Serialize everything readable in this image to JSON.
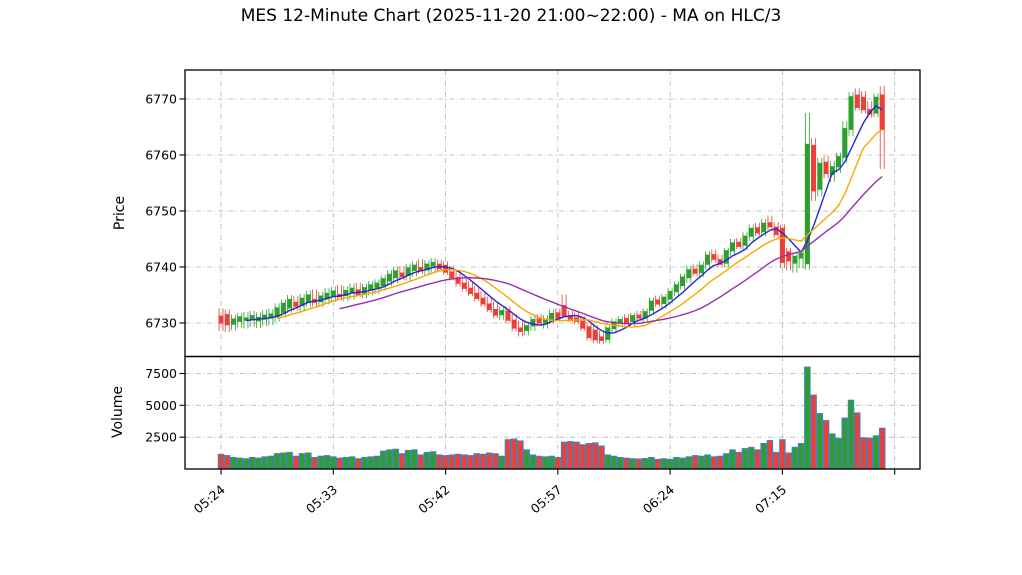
{
  "title": "MES 12-Minute Chart (2025-11-20 21:00~22:00) - MA on HLC/3",
  "price_axis": {
    "label": "Price",
    "ticks": [
      6730,
      6740,
      6750,
      6760,
      6770
    ]
  },
  "volume_axis": {
    "label": "Volume",
    "ticks": [
      2500,
      5000,
      7500
    ]
  },
  "x_axis": {
    "tick_labels": [
      "05:24",
      "05:33",
      "05:42",
      "05:57",
      "06:24",
      "07:15",
      ""
    ],
    "tick_bar_indices": [
      0,
      18,
      36,
      54,
      72,
      90,
      108
    ]
  },
  "chart_data": {
    "type": "candlestick+volume",
    "title": "MES 12-Minute Chart (2025-11-20 21:00~22:00) - MA on HLC/3",
    "ma_source": "HLC/3",
    "ma_periods": [
      5,
      10,
      20
    ],
    "price_ylim": [
      6724.2,
      6775.3
    ],
    "volume_ylim": [
      0,
      8900
    ],
    "grid": "dash-dot",
    "colors": {
      "up": "#2e9e2e",
      "down": "#ec3f3a",
      "ma_fast": "#2727cf",
      "ma_mid": "#ffa500",
      "ma_slow": "#9431a8",
      "volume_edge": "#4682b4",
      "grid": "#b3b3b3",
      "axis": "#000000"
    },
    "candles_format": [
      "open",
      "high",
      "low",
      "close",
      "volume"
    ],
    "candles": [
      [
        6731.3,
        6732.6,
        6728.6,
        6729.9,
        1150
      ],
      [
        6731.6,
        6732.4,
        6728.4,
        6729.6,
        1050
      ],
      [
        6729.7,
        6731.5,
        6728.7,
        6730.8,
        900
      ],
      [
        6730.2,
        6731.8,
        6729.2,
        6731.2,
        850
      ],
      [
        6730.4,
        6732.0,
        6729.0,
        6731.0,
        800
      ],
      [
        6730.5,
        6732.2,
        6729.3,
        6731.4,
        900
      ],
      [
        6730.3,
        6731.9,
        6729.1,
        6731.1,
        850
      ],
      [
        6730.6,
        6732.3,
        6729.4,
        6731.5,
        950
      ],
      [
        6730.8,
        6732.5,
        6729.6,
        6731.7,
        1000
      ],
      [
        6731.0,
        6733.5,
        6730.2,
        6732.8,
        1200
      ],
      [
        6731.8,
        6734.2,
        6731.0,
        6733.6,
        1250
      ],
      [
        6732.6,
        6735.0,
        6731.8,
        6734.3,
        1300
      ],
      [
        6733.8,
        6734.8,
        6732.2,
        6732.9,
        1000
      ],
      [
        6733.0,
        6735.2,
        6732.0,
        6734.5,
        1200
      ],
      [
        6733.6,
        6735.8,
        6732.8,
        6735.1,
        1250
      ],
      [
        6734.3,
        6736.0,
        6733.0,
        6733.6,
        900
      ],
      [
        6733.7,
        6735.6,
        6732.8,
        6734.9,
        1000
      ],
      [
        6734.2,
        6736.2,
        6733.3,
        6735.4,
        1050
      ],
      [
        6734.8,
        6736.5,
        6733.8,
        6735.8,
        950
      ],
      [
        6735.2,
        6736.8,
        6734.0,
        6734.6,
        850
      ],
      [
        6734.8,
        6736.6,
        6733.9,
        6735.9,
        900
      ],
      [
        6735.3,
        6737.0,
        6734.2,
        6736.3,
        950
      ],
      [
        6736.0,
        6737.2,
        6734.6,
        6735.0,
        800
      ],
      [
        6735.2,
        6737.0,
        6734.4,
        6736.4,
        900
      ],
      [
        6735.8,
        6737.5,
        6734.9,
        6736.9,
        950
      ],
      [
        6736.2,
        6737.8,
        6735.2,
        6737.2,
        1000
      ],
      [
        6736.6,
        6738.6,
        6735.8,
        6738.0,
        1400
      ],
      [
        6737.4,
        6739.4,
        6736.6,
        6738.8,
        1500
      ],
      [
        6738.0,
        6740.0,
        6737.1,
        6739.4,
        1550
      ],
      [
        6739.0,
        6740.2,
        6737.6,
        6738.2,
        1200
      ],
      [
        6738.4,
        6740.6,
        6737.6,
        6739.9,
        1450
      ],
      [
        6739.3,
        6741.0,
        6738.3,
        6740.4,
        1500
      ],
      [
        6740.0,
        6741.4,
        6738.8,
        6739.2,
        1100
      ],
      [
        6739.4,
        6741.2,
        6738.5,
        6740.6,
        1300
      ],
      [
        6740.1,
        6741.6,
        6739.0,
        6740.9,
        1350
      ],
      [
        6740.6,
        6741.3,
        6739.2,
        6739.6,
        1100
      ],
      [
        6740.4,
        6741.0,
        6738.6,
        6739.0,
        1050
      ],
      [
        6739.2,
        6740.2,
        6737.6,
        6738.0,
        1100
      ],
      [
        6738.2,
        6739.2,
        6736.5,
        6737.0,
        1150
      ],
      [
        6737.2,
        6738.4,
        6735.6,
        6736.1,
        1100
      ],
      [
        6736.3,
        6737.5,
        6734.8,
        6735.2,
        1050
      ],
      [
        6735.4,
        6736.6,
        6733.9,
        6734.3,
        1200
      ],
      [
        6734.5,
        6735.7,
        6732.9,
        6733.3,
        1150
      ],
      [
        6733.5,
        6734.7,
        6731.9,
        6732.3,
        1250
      ],
      [
        6732.5,
        6733.8,
        6730.9,
        6731.3,
        1200
      ],
      [
        6731.4,
        6732.9,
        6730.5,
        6732.3,
        1000
      ],
      [
        6732.2,
        6733.0,
        6730.0,
        6730.4,
        2300
      ],
      [
        6730.6,
        6731.6,
        6728.5,
        6729.0,
        2350
      ],
      [
        6729.2,
        6730.4,
        6727.6,
        6728.4,
        2200
      ],
      [
        6728.6,
        6730.2,
        6727.8,
        6729.6,
        1500
      ],
      [
        6729.4,
        6731.2,
        6728.6,
        6730.7,
        1100
      ],
      [
        6730.8,
        6731.6,
        6729.4,
        6729.9,
        1000
      ],
      [
        6729.9,
        6731.4,
        6729.0,
        6730.8,
        950
      ],
      [
        6730.6,
        6732.4,
        6729.8,
        6731.8,
        1000
      ],
      [
        6731.9,
        6732.6,
        6730.3,
        6730.8,
        900
      ],
      [
        6733.2,
        6735.1,
        6730.8,
        6731.2,
        2100
      ],
      [
        6731.4,
        6732.2,
        6730.2,
        6730.6,
        2150
      ],
      [
        6731.0,
        6731.9,
        6729.8,
        6730.2,
        2100
      ],
      [
        6730.4,
        6731.2,
        6728.6,
        6729.0,
        1900
      ],
      [
        6729.4,
        6730.2,
        6726.9,
        6727.3,
        2000
      ],
      [
        6728.8,
        6729.6,
        6726.4,
        6726.9,
        2050
      ],
      [
        6727.6,
        6728.6,
        6726.3,
        6726.8,
        1800
      ],
      [
        6727.0,
        6729.6,
        6726.5,
        6729.2,
        1100
      ],
      [
        6728.9,
        6730.8,
        6728.2,
        6730.3,
        1000
      ],
      [
        6730.0,
        6731.2,
        6729.2,
        6730.7,
        900
      ],
      [
        6730.9,
        6731.6,
        6729.6,
        6730.0,
        850
      ],
      [
        6730.2,
        6731.8,
        6729.5,
        6731.4,
        800
      ],
      [
        6731.5,
        6732.2,
        6730.3,
        6730.8,
        780
      ],
      [
        6730.9,
        6732.6,
        6730.1,
        6732.1,
        820
      ],
      [
        6732.2,
        6734.5,
        6731.5,
        6734.0,
        900
      ],
      [
        6734.2,
        6734.9,
        6732.9,
        6733.3,
        750
      ],
      [
        6733.4,
        6735.2,
        6732.6,
        6734.7,
        800
      ],
      [
        6734.2,
        6736.2,
        6733.5,
        6735.7,
        750
      ],
      [
        6735.5,
        6737.4,
        6734.8,
        6736.9,
        900
      ],
      [
        6736.6,
        6738.8,
        6736.0,
        6738.3,
        850
      ],
      [
        6738.0,
        6740.2,
        6737.2,
        6739.6,
        950
      ],
      [
        6739.7,
        6740.5,
        6738.3,
        6738.8,
        1050
      ],
      [
        6738.9,
        6741.0,
        6738.2,
        6740.4,
        1000
      ],
      [
        6740.4,
        6742.8,
        6739.6,
        6742.2,
        1100
      ],
      [
        6742.3,
        6743.1,
        6740.8,
        6741.3,
        950
      ],
      [
        6741.4,
        6742.2,
        6739.9,
        6740.4,
        1000
      ],
      [
        6740.6,
        6743.4,
        6740.0,
        6743.0,
        1200
      ],
      [
        6742.8,
        6745.0,
        6742.0,
        6744.4,
        1500
      ],
      [
        6744.5,
        6745.2,
        6743.2,
        6743.6,
        1300
      ],
      [
        6743.8,
        6746.2,
        6743.0,
        6745.6,
        1600
      ],
      [
        6745.4,
        6747.6,
        6744.6,
        6747.0,
        1700
      ],
      [
        6747.1,
        6747.9,
        6745.6,
        6746.0,
        1500
      ],
      [
        6746.2,
        6748.6,
        6745.5,
        6747.9,
        2000
      ],
      [
        6748.0,
        6749.2,
        6746.6,
        6747.1,
        2230
      ],
      [
        6747.2,
        6748.0,
        6745.2,
        6745.7,
        1300
      ],
      [
        6747.0,
        6747.6,
        6739.8,
        6740.7,
        2300
      ],
      [
        6742.8,
        6743.4,
        6739.4,
        6741.0,
        1250
      ],
      [
        6740.6,
        6742.6,
        6739.0,
        6742.0,
        1700
      ],
      [
        6741.5,
        6743.0,
        6739.8,
        6742.5,
        2000
      ],
      [
        6740.5,
        6767.5,
        6739.5,
        6762.0,
        8000
      ],
      [
        6761.8,
        6763.0,
        6751.8,
        6753.5,
        5800
      ],
      [
        6753.8,
        6759.5,
        6752.6,
        6758.6,
        4350
      ],
      [
        6758.8,
        6759.8,
        6755.8,
        6756.6,
        3800
      ],
      [
        6756.4,
        6758.9,
        6755.2,
        6758.0,
        2750
      ],
      [
        6757.8,
        6760.4,
        6756.8,
        6759.8,
        2400
      ],
      [
        6759.5,
        6766.0,
        6758.6,
        6764.8,
        4000
      ],
      [
        6764.5,
        6771.2,
        6763.4,
        6770.5,
        5400
      ],
      [
        6770.8,
        6771.9,
        6767.9,
        6768.4,
        4400
      ],
      [
        6770.4,
        6771.4,
        6767.4,
        6768.0,
        2450
      ],
      [
        6768.2,
        6769.6,
        6766.6,
        6767.2,
        2400
      ],
      [
        6767.4,
        6771.0,
        6766.8,
        6770.4,
        2600
      ],
      [
        6770.8,
        6772.3,
        6757.5,
        6764.5,
        3200
      ]
    ]
  }
}
